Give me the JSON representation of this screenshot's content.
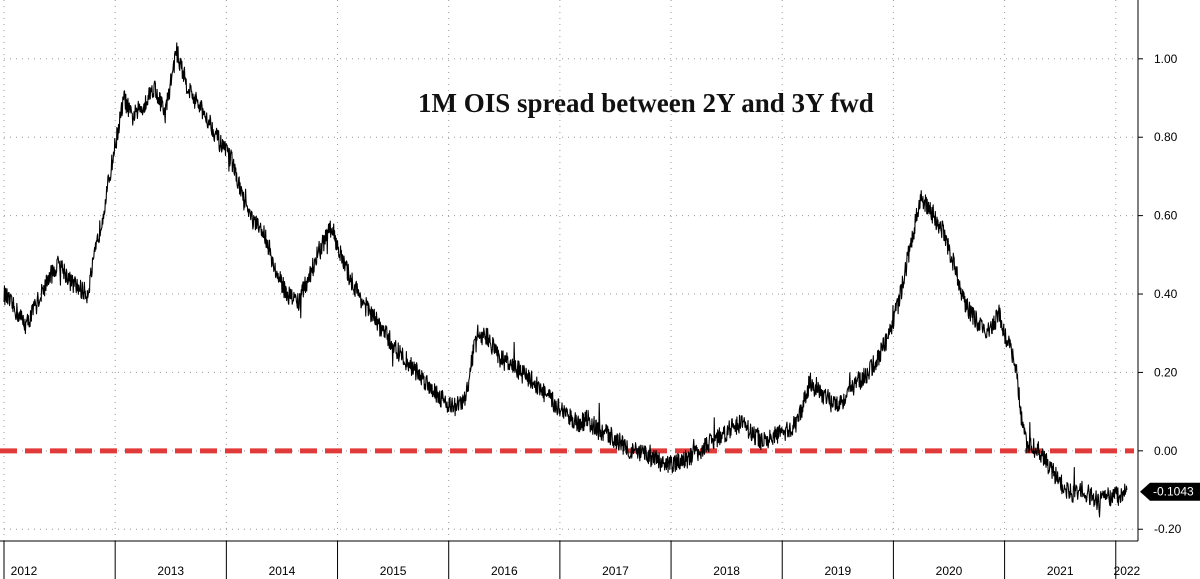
{
  "chart_data": {
    "type": "line",
    "title": "1M OIS spread between 2Y and 3Y fwd",
    "xlabel": "",
    "ylabel": "",
    "xlim": [
      2012.0,
      2022.2
    ],
    "ylim": [
      -0.23,
      1.15
    ],
    "y_ticks": [
      {
        "value": 1.0,
        "label": "1.00"
      },
      {
        "value": 0.8,
        "label": "0.80"
      },
      {
        "value": 0.6,
        "label": "0.60"
      },
      {
        "value": 0.4,
        "label": "0.40"
      },
      {
        "value": 0.2,
        "label": "0.20"
      },
      {
        "value": 0.0,
        "label": "0.00"
      },
      {
        "value": -0.2,
        "label": "-0.20"
      }
    ],
    "x_ticks": [
      {
        "value": 2012.0,
        "label": "2012"
      },
      {
        "value": 2013.0,
        "label": "2013"
      },
      {
        "value": 2014.0,
        "label": "2014"
      },
      {
        "value": 2015.0,
        "label": "2015"
      },
      {
        "value": 2016.0,
        "label": "2016"
      },
      {
        "value": 2017.0,
        "label": "2017"
      },
      {
        "value": 2018.0,
        "label": "2018"
      },
      {
        "value": 2019.0,
        "label": "2019"
      },
      {
        "value": 2020.0,
        "label": "2020"
      },
      {
        "value": 2021.0,
        "label": "2021"
      },
      {
        "value": 2022.0,
        "label": "2022"
      }
    ],
    "grid": true,
    "y_axis_side": "right",
    "series": [
      {
        "color": "#000000",
        "x": [
          2012.0,
          2012.1,
          2012.2,
          2012.3,
          2012.4,
          2012.5,
          2012.6,
          2012.75,
          2012.9,
          2013.0,
          2013.08,
          2013.15,
          2013.25,
          2013.35,
          2013.45,
          2013.55,
          2013.65,
          2013.75,
          2013.85,
          2013.95,
          2014.05,
          2014.15,
          2014.25,
          2014.35,
          2014.45,
          2014.55,
          2014.65,
          2014.75,
          2014.85,
          2014.95,
          2015.05,
          2015.15,
          2015.25,
          2015.35,
          2015.45,
          2015.55,
          2015.65,
          2015.75,
          2015.85,
          2015.95,
          2016.05,
          2016.15,
          2016.25,
          2016.35,
          2016.45,
          2016.55,
          2016.65,
          2016.75,
          2016.85,
          2016.95,
          2017.05,
          2017.15,
          2017.25,
          2017.35,
          2017.45,
          2017.55,
          2017.65,
          2017.75,
          2017.85,
          2017.95,
          2018.05,
          2018.15,
          2018.25,
          2018.35,
          2018.45,
          2018.55,
          2018.65,
          2018.75,
          2018.85,
          2018.95,
          2019.05,
          2019.15,
          2019.25,
          2019.35,
          2019.45,
          2019.55,
          2019.65,
          2019.75,
          2019.85,
          2019.95,
          2020.05,
          2020.15,
          2020.25,
          2020.35,
          2020.45,
          2020.55,
          2020.65,
          2020.75,
          2020.85,
          2020.95,
          2021.0,
          2021.05,
          2021.1,
          2021.15,
          2021.2,
          2021.3,
          2021.4,
          2021.5,
          2021.6,
          2021.65,
          2021.7,
          2021.75,
          2021.8,
          2021.85,
          2021.9,
          2021.95,
          2022.0,
          2022.05,
          2022.1
        ],
        "y": [
          0.4,
          0.36,
          0.32,
          0.38,
          0.44,
          0.48,
          0.43,
          0.4,
          0.62,
          0.78,
          0.9,
          0.85,
          0.88,
          0.93,
          0.86,
          1.02,
          0.93,
          0.88,
          0.84,
          0.78,
          0.74,
          0.64,
          0.58,
          0.55,
          0.45,
          0.4,
          0.38,
          0.45,
          0.52,
          0.57,
          0.48,
          0.42,
          0.37,
          0.33,
          0.29,
          0.25,
          0.22,
          0.19,
          0.16,
          0.13,
          0.11,
          0.13,
          0.3,
          0.29,
          0.24,
          0.22,
          0.2,
          0.18,
          0.15,
          0.12,
          0.1,
          0.07,
          0.08,
          0.05,
          0.04,
          0.02,
          0.0,
          -0.01,
          -0.02,
          -0.04,
          -0.03,
          -0.02,
          0.0,
          0.02,
          0.04,
          0.06,
          0.07,
          0.04,
          0.02,
          0.04,
          0.05,
          0.08,
          0.18,
          0.15,
          0.12,
          0.13,
          0.17,
          0.19,
          0.23,
          0.29,
          0.38,
          0.52,
          0.65,
          0.6,
          0.56,
          0.47,
          0.37,
          0.33,
          0.3,
          0.35,
          0.3,
          0.26,
          0.22,
          0.08,
          0.02,
          0.0,
          -0.04,
          -0.08,
          -0.11,
          -0.11,
          -0.1,
          -0.11,
          -0.12,
          -0.13,
          -0.11,
          -0.12,
          -0.11,
          -0.12,
          -0.1
        ]
      }
    ],
    "reference_line": {
      "value": 0.0,
      "color": "#e03a3a",
      "style": "dashed"
    },
    "last_value_label": {
      "value": -0.1043,
      "text": "-0.1043"
    }
  }
}
